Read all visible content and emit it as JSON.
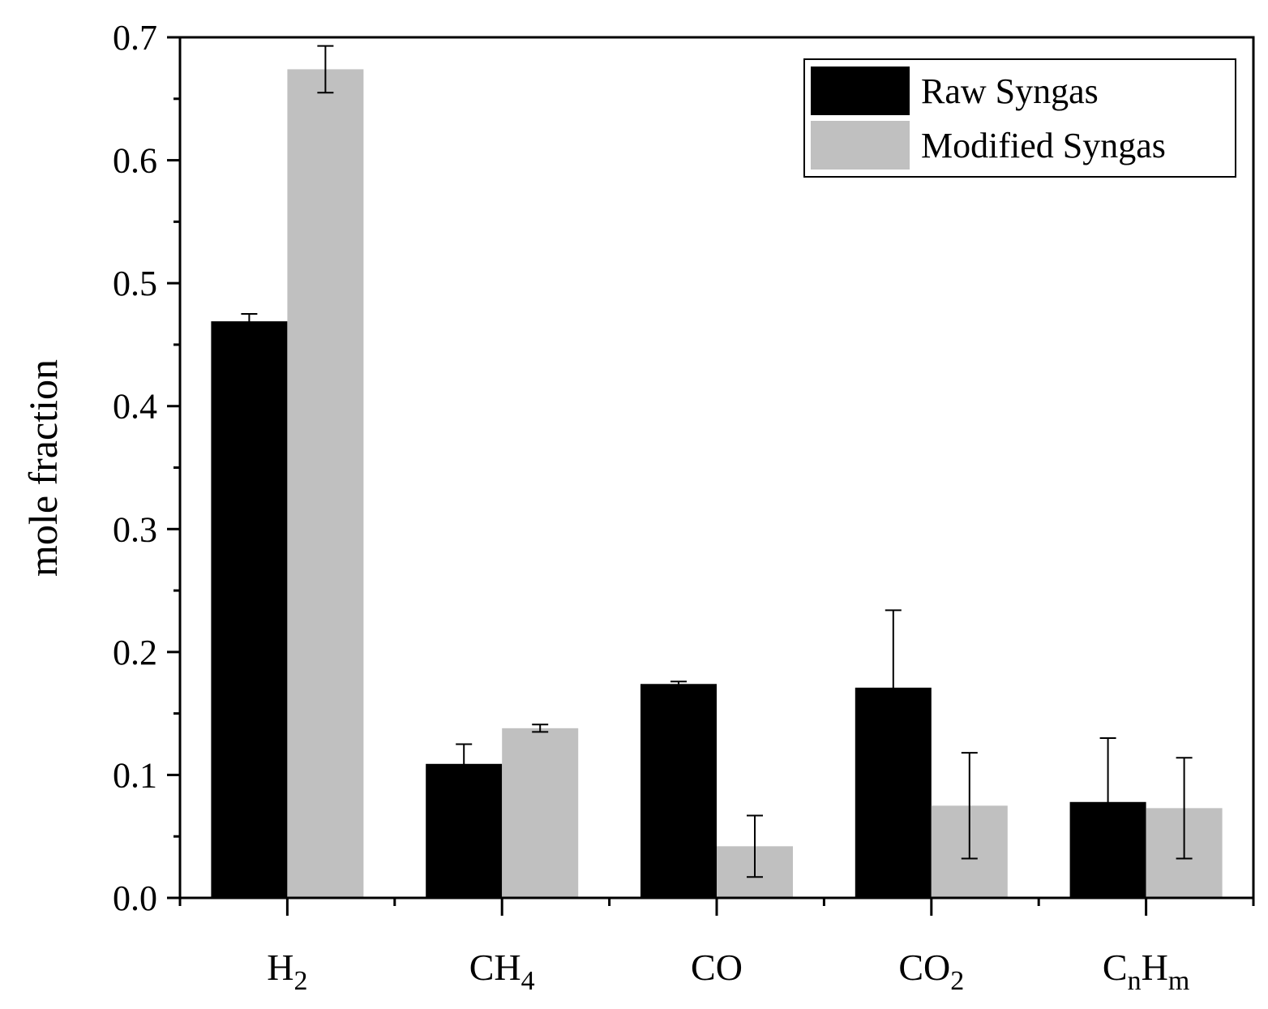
{
  "chart_data": {
    "type": "bar",
    "title": "",
    "xlabel": "",
    "ylabel": "mole fraction",
    "ylim": [
      0,
      0.7
    ],
    "yticks": [
      "0.0",
      "0.1",
      "0.2",
      "0.3",
      "0.4",
      "0.5",
      "0.6",
      "0.7"
    ],
    "categories": [
      {
        "base": "H",
        "sub": "2",
        "base2": "",
        "sub2": ""
      },
      {
        "base": "CH",
        "sub": "4",
        "base2": "",
        "sub2": ""
      },
      {
        "base": "CO",
        "sub": "",
        "base2": "",
        "sub2": ""
      },
      {
        "base": "CO",
        "sub": "2",
        "base2": "",
        "sub2": ""
      },
      {
        "base": "C",
        "sub": "n",
        "base2": "H",
        "sub2": "m"
      }
    ],
    "series": [
      {
        "name": "Raw Syngas",
        "color": "#000000",
        "values": [
          0.469,
          0.109,
          0.174,
          0.171,
          0.078
        ],
        "error_plus": [
          0.006,
          0.016,
          0.002,
          0.063,
          0.052
        ],
        "error_minus": [
          0.006,
          0.016,
          0.002,
          0.063,
          0.052
        ]
      },
      {
        "name": "Modified Syngas",
        "color": "#c0c0c0",
        "values": [
          0.674,
          0.138,
          0.042,
          0.075,
          0.073
        ],
        "error_plus": [
          0.019,
          0.003,
          0.025,
          0.043,
          0.041
        ],
        "error_minus": [
          0.019,
          0.003,
          0.025,
          0.043,
          0.041
        ]
      }
    ],
    "legend_position": "top-right",
    "grid": false
  }
}
